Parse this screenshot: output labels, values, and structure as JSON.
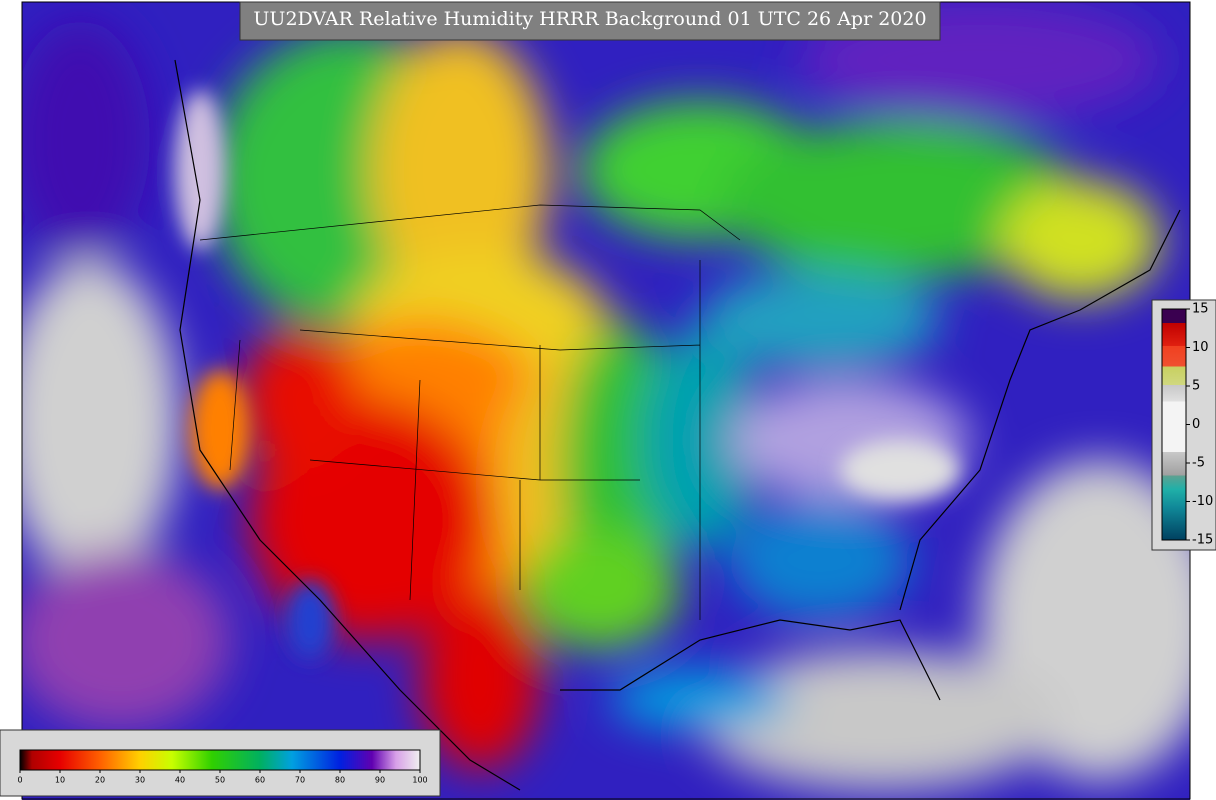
{
  "title": "UU2DVAR Relative Humidity HRRR Background  01 UTC 26 Apr 2020",
  "colorbars": [
    {
      "orientation": "horizontal",
      "range": [
        0,
        100
      ],
      "ticks": [
        0,
        10,
        20,
        30,
        40,
        50,
        60,
        70,
        80,
        90,
        100
      ]
    },
    {
      "orientation": "vertical",
      "range": [
        -15,
        15
      ],
      "ticks": [
        15,
        10,
        5,
        0,
        -5,
        -10,
        -15
      ]
    }
  ]
}
